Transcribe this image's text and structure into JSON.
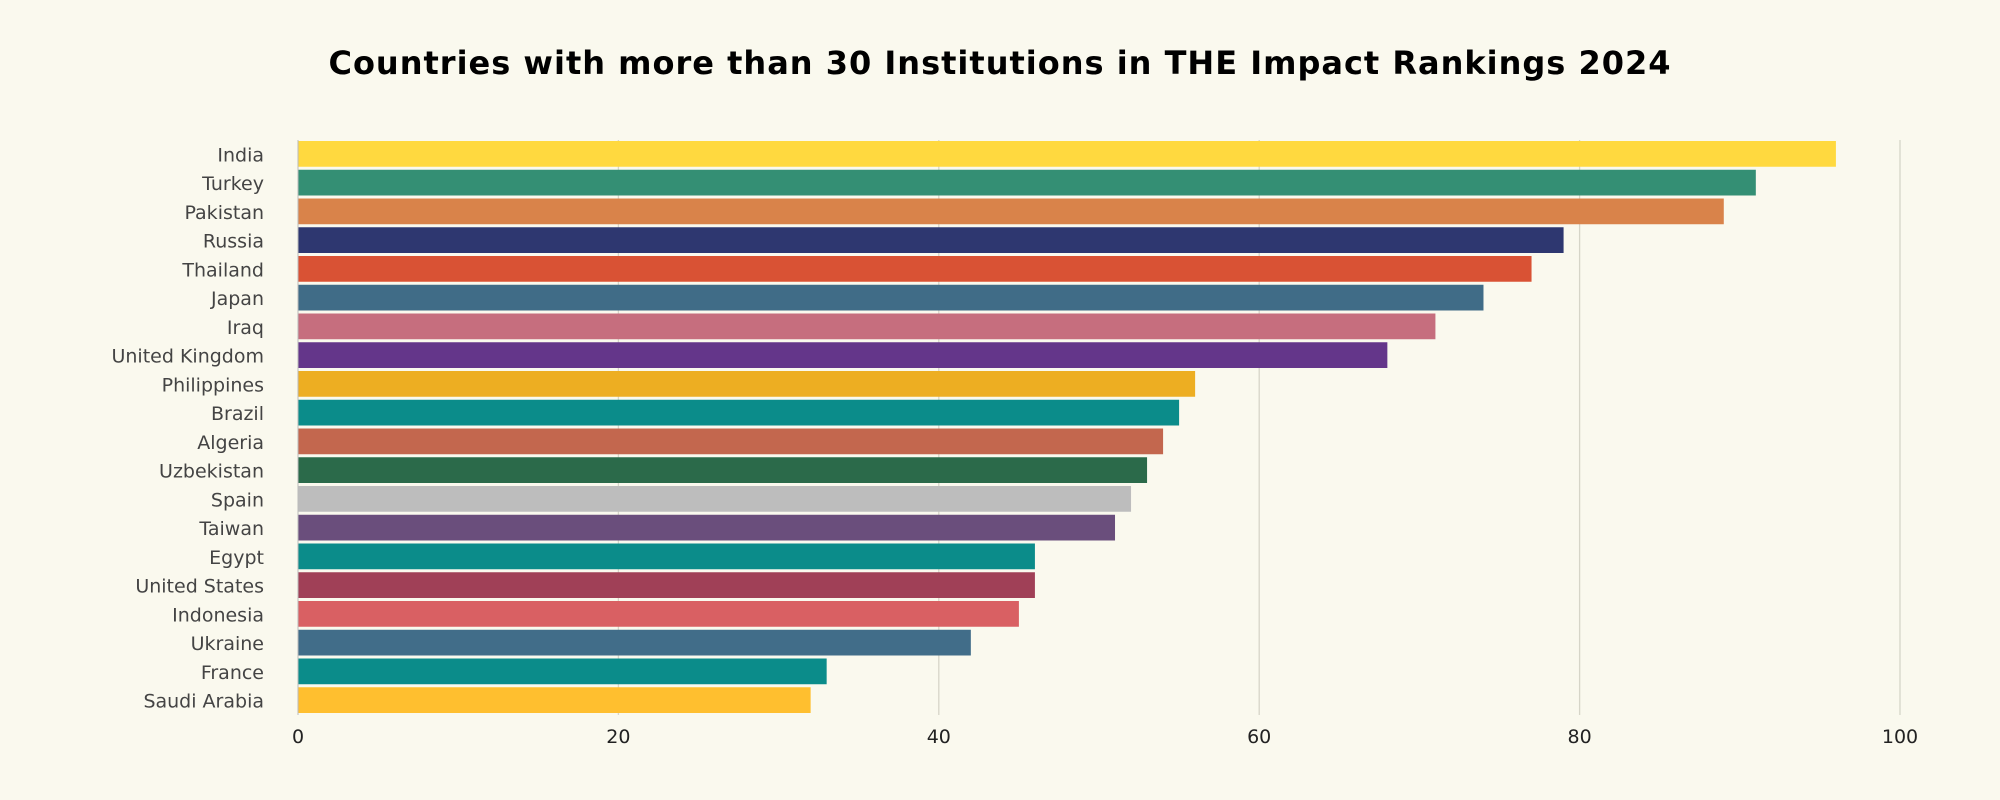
{
  "chart_data": {
    "type": "bar",
    "orientation": "horizontal",
    "title": "Countries with more than 30 Institutions in THE Impact Rankings 2024",
    "xlabel": "",
    "ylabel": "",
    "xlim": [
      0,
      100
    ],
    "xticks": [
      0,
      20,
      40,
      60,
      80,
      100
    ],
    "grid": true,
    "categories": [
      "India",
      "Turkey",
      "Pakistan",
      "Russia",
      "Thailand",
      "Japan",
      "Iraq",
      "United Kingdom",
      "Philippines",
      "Brazil",
      "Algeria",
      "Uzbekistan",
      "Spain",
      "Taiwan",
      "Egypt",
      "United States",
      "Indonesia",
      "Ukraine",
      "France",
      "Saudi Arabia"
    ],
    "values": [
      96,
      91,
      89,
      79,
      77,
      74,
      71,
      68,
      56,
      55,
      54,
      53,
      52,
      51,
      46,
      46,
      45,
      42,
      33,
      32
    ],
    "colors": [
      "#ffd93f",
      "#348f74",
      "#d9834a",
      "#2e3770",
      "#d95234",
      "#406c87",
      "#c66e7e",
      "#64368a",
      "#edae22",
      "#0b8c8a",
      "#c3674e",
      "#2b6a4a",
      "#bdbdbd",
      "#6a4e7c",
      "#0b8c8a",
      "#a04057",
      "#d96063",
      "#416d89",
      "#0b8c8a",
      "#ffbf2f"
    ],
    "background": "#faf9ee"
  }
}
